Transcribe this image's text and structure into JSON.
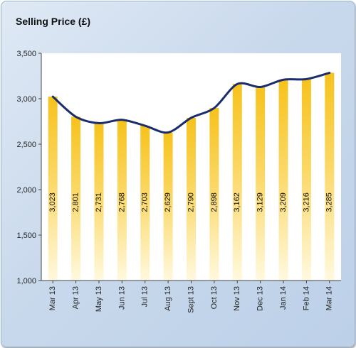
{
  "chart_data": {
    "type": "bar",
    "title": "Selling Price (£)",
    "categories": [
      "Mar 13",
      "Apr 13",
      "May 13",
      "Jun 13",
      "Jul 13",
      "Aug 13",
      "Sept 13",
      "Oct 13",
      "Nov 13",
      "Dec 13",
      "Jan 14",
      "Feb 14",
      "Mar 14"
    ],
    "values": [
      3023,
      2801,
      2731,
      2768,
      2703,
      2629,
      2790,
      2898,
      3162,
      3129,
      3209,
      3216,
      3285
    ],
    "value_labels": [
      "3,023",
      "2,801",
      "2,731",
      "2,768",
      "2,703",
      "2,629",
      "2,790",
      "2,898",
      "3,162",
      "3,129",
      "3,209",
      "3,216",
      "3,285"
    ],
    "trend_line": true,
    "ylim": [
      1000,
      3500
    ],
    "yticks": [
      1000,
      1500,
      2000,
      2500,
      3000,
      3500
    ],
    "ytick_labels": [
      "1,000",
      "1,500",
      "2,000",
      "2,500",
      "3,000",
      "3,500"
    ],
    "xlabel": "",
    "ylabel": "",
    "grid": false,
    "colors": {
      "bar_top": "#f6c21c",
      "bar_bottom": "#fff9df",
      "trend": "#1b2d6b",
      "plot_bg": "#ffffff"
    }
  }
}
